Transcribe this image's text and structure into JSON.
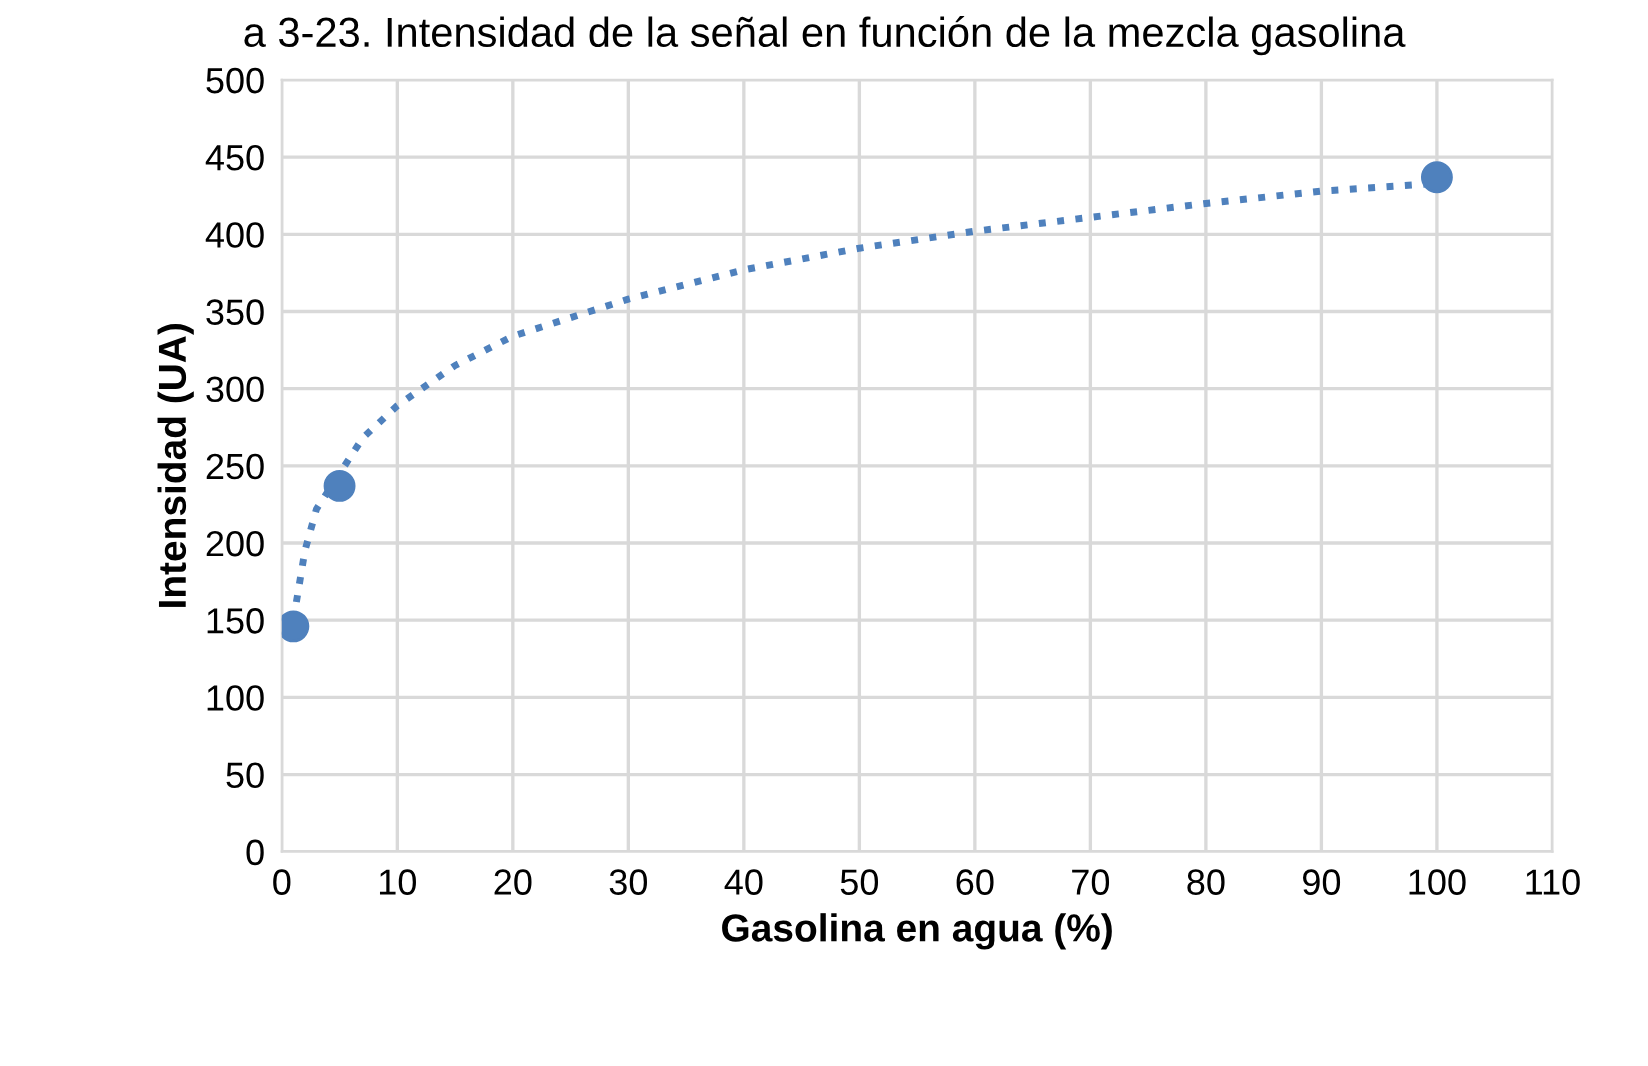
{
  "chart_data": {
    "type": "scatter",
    "title": "a 3-23. Intensidad de la señal en función de la mezcla gasolina",
    "xlabel": "Gasolina en agua (%)",
    "ylabel": "Intensidad (UA)",
    "xlim": [
      0,
      110
    ],
    "xticks": [
      0,
      10,
      20,
      30,
      40,
      50,
      60,
      70,
      80,
      90,
      100,
      110
    ],
    "ylim": [
      0,
      500
    ],
    "yticks": [
      0,
      50,
      100,
      150,
      200,
      250,
      300,
      350,
      400,
      450,
      500
    ],
    "grid": true,
    "legend": false,
    "series": [
      {
        "color": "#4f81bd",
        "marker": "circle",
        "x": [
          1,
          5,
          100
        ],
        "values": [
          146,
          237,
          437
        ]
      },
      {
        "type": "line",
        "color": "#4f81bd",
        "line_style": "dotted",
        "marker": "none",
        "x": [
          1,
          2,
          3,
          5,
          7,
          10,
          15,
          20,
          30,
          40,
          50,
          60,
          70,
          80,
          90,
          100
        ],
        "values": [
          150,
          195,
          222,
          245,
          268,
          289,
          315,
          334,
          358,
          377,
          391,
          402,
          411,
          420,
          428,
          433
        ]
      }
    ]
  }
}
